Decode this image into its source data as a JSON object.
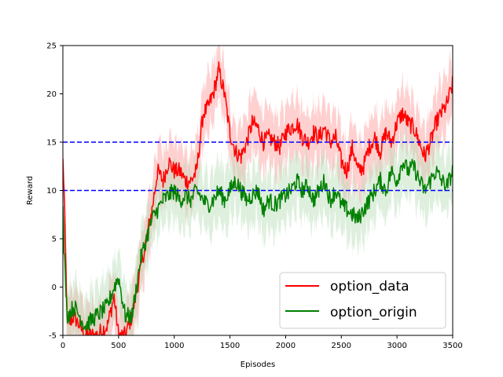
{
  "chart_data": {
    "type": "line",
    "title": "",
    "xlabel": "Episodes",
    "ylabel": "Reward",
    "xlim": [
      0,
      3500
    ],
    "ylim": [
      -5,
      25
    ],
    "xticks": [
      0,
      500,
      1000,
      1500,
      2000,
      2500,
      3000,
      3500
    ],
    "yticks": [
      -5,
      0,
      5,
      10,
      15,
      20,
      25
    ],
    "grid": false,
    "legend_position": "bottom-right",
    "reference_lines": [
      {
        "y": 15,
        "style": "dashed",
        "color": "#0000ff"
      },
      {
        "y": 10,
        "style": "dashed",
        "color": "#0000ff"
      }
    ],
    "series": [
      {
        "name": "option_data",
        "color": "#ff0000",
        "band_color": "#ffaaaa",
        "x": [
          0,
          10,
          40,
          100,
          200,
          300,
          400,
          460,
          500,
          560,
          620,
          700,
          800,
          850,
          900,
          950,
          1000,
          1050,
          1100,
          1150,
          1200,
          1230,
          1260,
          1300,
          1350,
          1400,
          1450,
          1500,
          1550,
          1600,
          1650,
          1700,
          1750,
          1800,
          1850,
          1900,
          1950,
          2000,
          2050,
          2100,
          2150,
          2200,
          2250,
          2300,
          2350,
          2400,
          2450,
          2500,
          2550,
          2600,
          2650,
          2700,
          2750,
          2800,
          2850,
          2900,
          2950,
          3000,
          3050,
          3100,
          3150,
          3200,
          3250,
          3300,
          3350,
          3400,
          3450,
          3500
        ],
        "y": [
          13,
          10,
          -4,
          -3,
          -5,
          -5,
          -4,
          -1,
          -5,
          -5,
          -3,
          2,
          8,
          12,
          11,
          13,
          12,
          12,
          11,
          11,
          12,
          15,
          18,
          18.5,
          20,
          22.5,
          20,
          16,
          14,
          13.5,
          15,
          17,
          16.5,
          15,
          15.5,
          15,
          14.5,
          16,
          16.5,
          17,
          15.5,
          15,
          16,
          15.5,
          16.5,
          15,
          15.5,
          13,
          12,
          14.5,
          12,
          12.5,
          14.5,
          15.5,
          14,
          16,
          15,
          17,
          18,
          17,
          16.5,
          15,
          13.5,
          15,
          17,
          18,
          19,
          21
        ]
      },
      {
        "name": "option_origin",
        "color": "#008000",
        "band_color": "#b5dbb5",
        "x": [
          0,
          10,
          40,
          100,
          200,
          300,
          400,
          460,
          500,
          560,
          620,
          700,
          800,
          850,
          900,
          950,
          1000,
          1050,
          1100,
          1150,
          1200,
          1230,
          1260,
          1300,
          1350,
          1400,
          1450,
          1500,
          1550,
          1600,
          1650,
          1700,
          1750,
          1800,
          1850,
          1900,
          1950,
          2000,
          2050,
          2100,
          2150,
          2200,
          2250,
          2300,
          2350,
          2400,
          2450,
          2500,
          2550,
          2600,
          2650,
          2700,
          2750,
          2800,
          2850,
          2900,
          2950,
          3000,
          3050,
          3100,
          3150,
          3200,
          3250,
          3300,
          3350,
          3400,
          3450,
          3500
        ],
        "y": [
          8,
          4,
          -3,
          -2,
          -4,
          -3,
          -2,
          0,
          1,
          -3,
          -3,
          3,
          7,
          8,
          9,
          9.5,
          10,
          9,
          9.5,
          9,
          10,
          9.5,
          9,
          8.5,
          9,
          10,
          9,
          10,
          11,
          10,
          9,
          9.5,
          10,
          8,
          9,
          8.5,
          9,
          9.5,
          10,
          11,
          10,
          10.5,
          9,
          10,
          11,
          9,
          10,
          8.5,
          8,
          7.5,
          7,
          8,
          9,
          10,
          11,
          10,
          12,
          11,
          13,
          12,
          12.5,
          11,
          10,
          11,
          12,
          11,
          10.5,
          12
        ]
      }
    ]
  },
  "chart_style": {
    "axis_color": "#000000",
    "background": "#ffffff"
  }
}
